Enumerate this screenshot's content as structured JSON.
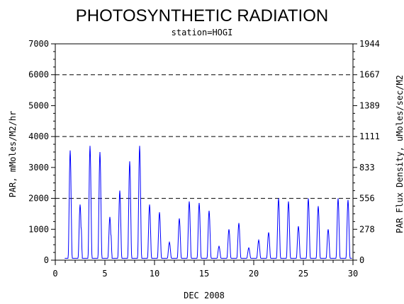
{
  "chart_data": {
    "type": "line",
    "title": "PHOTOSYNTHETIC RADIATION",
    "subtitle": "station=HOGI",
    "xlabel": "DEC 2008",
    "ylabel_left": "PAR, mMoles/M2/hr",
    "ylabel_right": "PAR Flux Density, uMoles/sec/M2",
    "xlim": [
      0,
      30
    ],
    "ylim_left": [
      0,
      7000
    ],
    "ylim_right_ticks": [
      "0",
      "278",
      "556",
      "833",
      "1111",
      "1389",
      "1667",
      "1944"
    ],
    "x_ticks": [
      0,
      5,
      10,
      15,
      20,
      25,
      30
    ],
    "y_ticks_left": [
      0,
      1000,
      2000,
      3000,
      4000,
      5000,
      6000,
      7000
    ],
    "grid": {
      "dashed_y": [
        2000,
        4000,
        6000
      ]
    },
    "series": [
      {
        "color": "#0000ff",
        "daily_peaks": [
          {
            "day": 1,
            "peak": 3550
          },
          {
            "day": 2,
            "peak": 1800,
            "secondary": 1000
          },
          {
            "day": 3,
            "peak": 3700
          },
          {
            "day": 4,
            "peak": 3500
          },
          {
            "day": 5,
            "peak": 1400,
            "secondary": 800
          },
          {
            "day": 6,
            "peak": 2250
          },
          {
            "day": 7,
            "peak": 3200
          },
          {
            "day": 8,
            "peak": 3700
          },
          {
            "day": 9,
            "peak": 1800
          },
          {
            "day": 10,
            "peak": 1550
          },
          {
            "day": 11,
            "peak": 580
          },
          {
            "day": 12,
            "peak": 1350
          },
          {
            "day": 13,
            "peak": 1900
          },
          {
            "day": 14,
            "peak": 1850
          },
          {
            "day": 15,
            "peak": 1600
          },
          {
            "day": 16,
            "peak": 450
          },
          {
            "day": 17,
            "peak": 1000
          },
          {
            "day": 18,
            "peak": 1200
          },
          {
            "day": 19,
            "peak": 400
          },
          {
            "day": 20,
            "peak": 650
          },
          {
            "day": 21,
            "peak": 900
          },
          {
            "day": 22,
            "peak": 2000
          },
          {
            "day": 23,
            "peak": 1900
          },
          {
            "day": 24,
            "peak": 1100
          },
          {
            "day": 25,
            "peak": 2000
          },
          {
            "day": 26,
            "peak": 1750
          },
          {
            "day": 27,
            "peak": 1000
          },
          {
            "day": 28,
            "peak": 2000
          },
          {
            "day": 29,
            "peak": 1950
          }
        ]
      }
    ]
  }
}
